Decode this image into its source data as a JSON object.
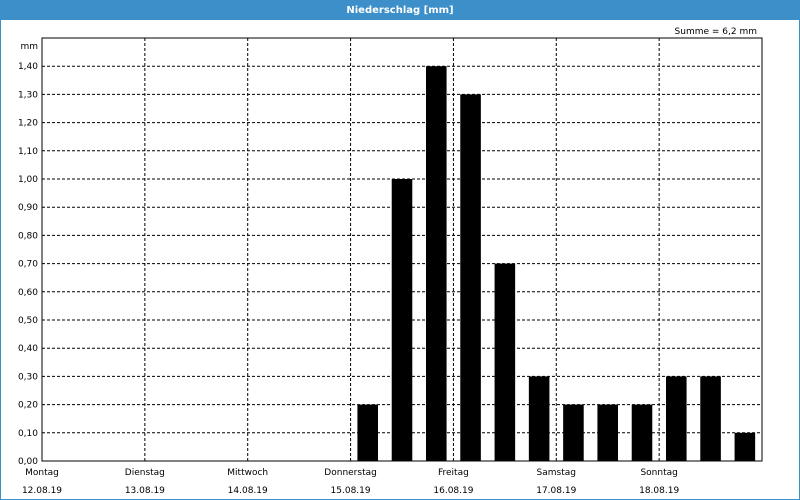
{
  "window": {
    "title": "Niederschlag [mm]"
  },
  "colors": {
    "titlebar": "#3c8fc8",
    "bars": "#000000",
    "grid": "#000000",
    "background": "#ffffff"
  },
  "chart_data": {
    "type": "bar",
    "title": "Niederschlag [mm]",
    "ylabel": "mm",
    "xlabel": "",
    "annotation": "Summe = 6,2 mm",
    "ylim": [
      0,
      1.5
    ],
    "yticks": [
      "0,00",
      "0,10",
      "0,20",
      "0,30",
      "0,40",
      "0,50",
      "0,60",
      "0,70",
      "0,80",
      "0,90",
      "1,00",
      "1,10",
      "1,20",
      "1,30",
      "1,40"
    ],
    "days": [
      {
        "name": "Montag",
        "date": "12.08.19"
      },
      {
        "name": "Dienstag",
        "date": "13.08.19"
      },
      {
        "name": "Mittwoch",
        "date": "14.08.19"
      },
      {
        "name": "Donnerstag",
        "date": "15.08.19"
      },
      {
        "name": "Freitag",
        "date": "16.08.19"
      },
      {
        "name": "Samstag",
        "date": "17.08.19"
      },
      {
        "name": "Sonntag",
        "date": "18.08.19"
      }
    ],
    "grid": true,
    "series": [
      {
        "values": [
          0,
          0,
          0,
          0,
          0,
          0,
          0,
          0,
          0,
          0.2,
          1.0,
          1.4,
          1.3,
          0.7,
          0.3,
          0.2,
          0.2,
          0.2,
          0.3,
          0.3,
          0.1
        ]
      }
    ]
  }
}
